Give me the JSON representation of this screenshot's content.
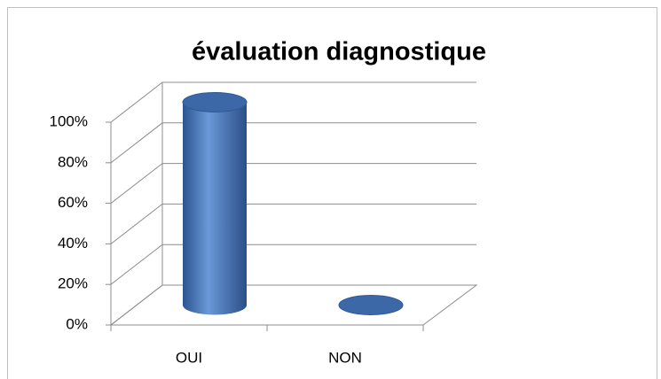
{
  "chart_data": {
    "type": "bar3d",
    "title": "évaluation diagnostique",
    "categories": [
      "OUI",
      "NON"
    ],
    "values": [
      100,
      0
    ],
    "color": "#4f81bd",
    "ylim": [
      0,
      100
    ],
    "yticks": [
      {
        "value": 0,
        "label": "0%"
      },
      {
        "value": 20,
        "label": "20%"
      },
      {
        "value": 40,
        "label": "40%"
      },
      {
        "value": 60,
        "label": "60%"
      },
      {
        "value": 80,
        "label": "80%"
      },
      {
        "value": 100,
        "label": "100%"
      }
    ],
    "grid": true
  }
}
